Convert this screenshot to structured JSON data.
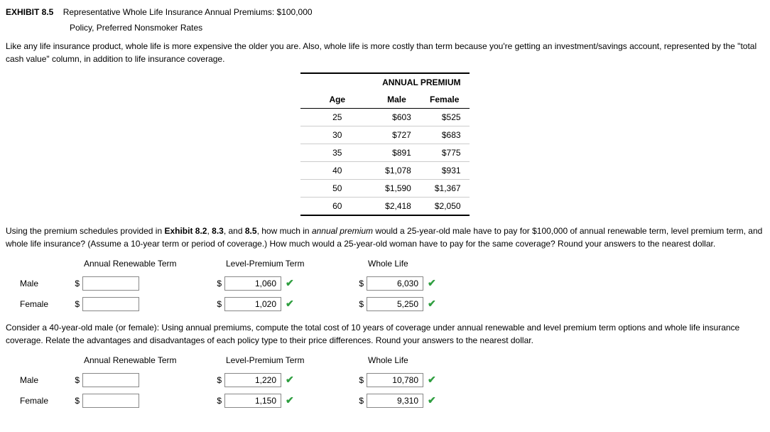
{
  "exhibit": {
    "label": "EXHIBIT 8.5",
    "title": "Representative Whole Life Insurance Annual Premiums: $100,000",
    "subtitle": "Policy, Preferred Nonsmoker Rates"
  },
  "intro": "Like any life insurance product, whole life is more expensive the older you are. Also, whole life is more costly than term because you're getting an investment/savings account, represented by the \"total cash value\" column, in addition to life insurance coverage.",
  "premiumTable": {
    "groupHeader": "ANNUAL PREMIUM",
    "columns": {
      "age": "Age",
      "male": "Male",
      "female": "Female"
    },
    "rows": [
      {
        "age": "25",
        "male": "$603",
        "female": "$525"
      },
      {
        "age": "30",
        "male": "$727",
        "female": "$683"
      },
      {
        "age": "35",
        "male": "$891",
        "female": "$775"
      },
      {
        "age": "40",
        "male": "$1,078",
        "female": "$931"
      },
      {
        "age": "50",
        "male": "$1,590",
        "female": "$1,367"
      },
      {
        "age": "60",
        "male": "$2,418",
        "female": "$2,050"
      }
    ]
  },
  "q1": {
    "text_pre": "Using the premium schedules provided in ",
    "bold1": "Exhibit 8.2",
    "comma1": ", ",
    "bold2": "8.3",
    "comma2": ", and ",
    "bold3": "8.5",
    "text_mid": ", how much in ",
    "ital": "annual premium",
    "text_post": " would a 25-year-old male have to pay for $100,000 of annual renewable term, level premium term, and whole life insurance? (Assume a 10-year term or period of coverage.) How much would a 25-year-old woman have to pay for the same coverage? Round your answers to the nearest dollar."
  },
  "cols": {
    "art": "Annual Renewable Term",
    "lpt": "Level-Premium Term",
    "wl": "Whole Life"
  },
  "rows": {
    "male": "Male",
    "female": "Female"
  },
  "dollar": "$",
  "checkmark": "✔",
  "answers1": {
    "male": {
      "art": "",
      "lpt": "1,060",
      "wl": "6,030"
    },
    "female": {
      "art": "",
      "lpt": "1,020",
      "wl": "5,250"
    }
  },
  "q2": {
    "text": "Consider a 40-year-old male (or female): Using annual premiums, compute the total cost of 10 years of coverage under annual renewable and level premium term options and whole life insurance coverage. Relate the advantages and disadvantages of each policy type to their price differences. Round your answers to the nearest dollar."
  },
  "answers2": {
    "male": {
      "art": "",
      "lpt": "1,220",
      "wl": "10,780"
    },
    "female": {
      "art": "",
      "lpt": "1,150",
      "wl": "9,310"
    }
  }
}
